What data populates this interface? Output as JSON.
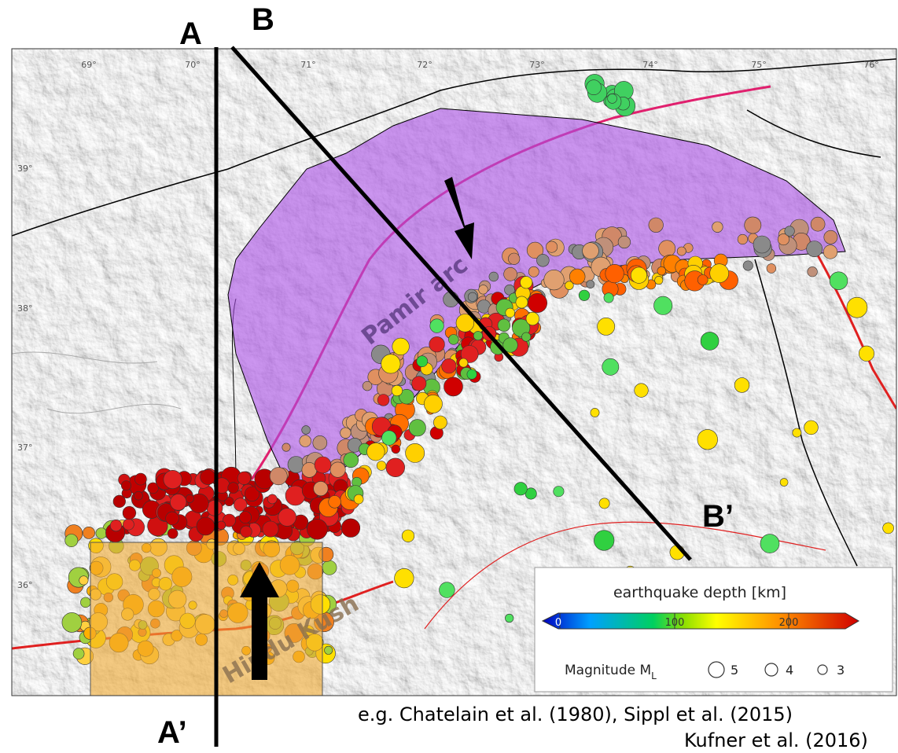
{
  "labels": {
    "a": "A",
    "b": "B",
    "a_prime": "A’",
    "b_prime": "B’"
  },
  "map": {
    "longitudes": [
      "69°",
      "70°",
      "71°",
      "72°",
      "73°",
      "74°",
      "75°",
      "76°"
    ],
    "latitudes": [
      "39°",
      "38°",
      "37°",
      "36°"
    ],
    "regions": [
      "Pamir arc",
      "Hindu Kush"
    ]
  },
  "legend": {
    "title": "earthquake depth [km]",
    "colorbar_ticks": [
      0,
      100,
      200
    ],
    "magnitude_label": "Magnitude M",
    "magnitude_subscript": "L",
    "magnitudes": [
      5,
      4,
      3
    ]
  },
  "citation": [
    "e.g. Chatelain et al. (1980), Sippl et al. (2015)",
    "Kufner et al. (2016)"
  ]
}
